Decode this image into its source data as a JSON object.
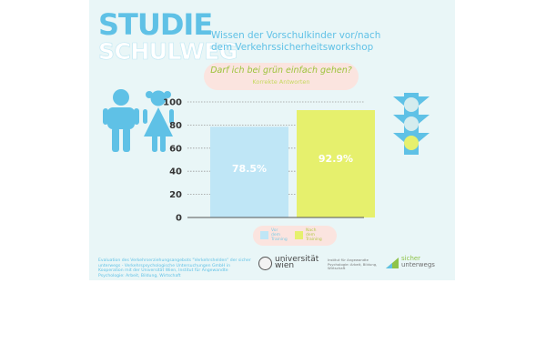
{
  "branding": {
    "logo_top": "STUDIE",
    "logo_bottom": "SCHULWEG"
  },
  "headline": {
    "line1": "Wissen der Vorschulkinder vor/nach",
    "line2": "dem Verkehrssicherheitsworkshop"
  },
  "question": {
    "text": "Darf ich bei grün einfach gehen?",
    "subtitle": "Korrekte Antworten"
  },
  "colors": {
    "background": "#e9f6f7",
    "accent_blue": "#5fc1e6",
    "bar_before": "#bfe6f6",
    "bar_after": "#e6f06d",
    "pill_pink": "#fbe4df",
    "traffic_light": "#5fc1e6"
  },
  "chart_data": {
    "type": "bar",
    "categories": [
      "Vor dem Training",
      "Nach dem Training"
    ],
    "values": [
      78.5,
      92.9
    ],
    "value_labels": [
      "78.5%",
      "92.9%"
    ],
    "bar_colors": [
      "#bfe6f6",
      "#e6f06d"
    ],
    "title": "Darf ich bei grün einfach gehen?",
    "subtitle": "Korrekte Antworten",
    "xlabel": "",
    "ylabel": "",
    "ylim": [
      0,
      100
    ],
    "yticks": [
      0,
      20,
      40,
      60,
      80,
      100
    ],
    "grid": true,
    "legend": {
      "position": "bottom-center",
      "entries": [
        "Vor dem Training",
        "Nach dem Training"
      ]
    }
  },
  "icons": [
    "boy-icon",
    "girl-icon",
    "traffic-light-icon",
    "university-seal-icon",
    "sicher-unterwegs-logo-icon"
  ],
  "footer": {
    "left_text": "Evaluation des Verkehrserziehungsangebots \"Verkehrshelden\" der sicher unterwegs - Verkehrspsychologische Untersuchungen GmbH in Kooperation mit der Universität Wien, Institut für Angewandte Psychologie: Arbeit, Bildung, Wirtschaft",
    "university_name_line1": "universität",
    "university_name_line2": "wien",
    "university_sub": "Institut für Angewandte Psychologie: Arbeit, Bildung, Wirtschaft",
    "partner_line1": "sicher",
    "partner_line2": "unterwegs"
  }
}
